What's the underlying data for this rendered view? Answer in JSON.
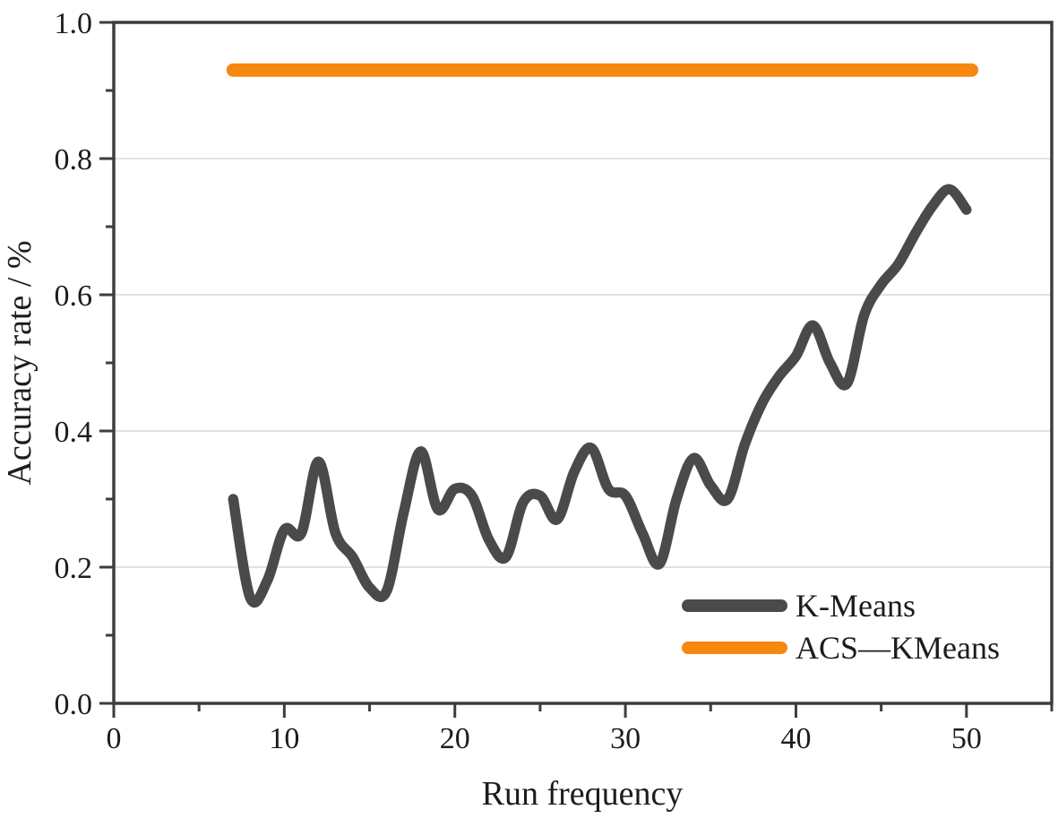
{
  "figure": {
    "background_color": "#ffffff",
    "title": ""
  },
  "chart_data": {
    "type": "line",
    "title": "",
    "xlabel": "Run frequency",
    "ylabel": "Accuracy rate / %",
    "xlim": [
      0,
      55
    ],
    "ylim": [
      0.0,
      1.0
    ],
    "grid": "horizontal-only",
    "y_gridlines": [
      0.2,
      0.4,
      0.6,
      0.8
    ],
    "x_major_ticks": [
      0,
      10,
      20,
      30,
      40,
      50
    ],
    "x_major_tick_labels": [
      "0",
      "10",
      "20",
      "30",
      "40",
      "50"
    ],
    "x_minor_ticks": [
      5,
      15,
      25,
      35,
      45,
      55
    ],
    "y_major_ticks": [
      0.0,
      0.2,
      0.4,
      0.6,
      0.8,
      1.0
    ],
    "y_major_tick_labels": [
      "0.0",
      "0.2",
      "0.4",
      "0.6",
      "0.8",
      "1.0"
    ],
    "y_minor_ticks": [
      0.1,
      0.3,
      0.5,
      0.7,
      0.9
    ],
    "axis_color": "#3d3d3d",
    "grid_color": "#d9d9d9",
    "text_color": "#1c1c1c",
    "legend_position": "lower-right-inside",
    "series": [
      {
        "name": "K-Means",
        "color": "#4a4a4a",
        "line_width": 11.5,
        "smooth": true,
        "x": [
          7,
          8,
          9,
          10,
          11,
          12,
          13,
          14,
          15,
          16,
          17,
          18,
          19,
          20,
          21,
          22,
          23,
          24,
          25,
          26,
          27,
          28,
          29,
          30,
          31,
          32,
          33,
          34,
          35,
          36,
          37,
          38,
          39,
          40,
          41,
          42,
          43,
          44,
          45,
          46,
          47,
          48,
          49,
          50
        ],
        "y": [
          0.3,
          0.155,
          0.18,
          0.255,
          0.25,
          0.355,
          0.25,
          0.215,
          0.17,
          0.165,
          0.28,
          0.37,
          0.285,
          0.315,
          0.305,
          0.24,
          0.215,
          0.295,
          0.305,
          0.27,
          0.34,
          0.375,
          0.315,
          0.305,
          0.25,
          0.205,
          0.3,
          0.36,
          0.32,
          0.3,
          0.38,
          0.44,
          0.48,
          0.51,
          0.555,
          0.5,
          0.47,
          0.57,
          0.615,
          0.645,
          0.69,
          0.73,
          0.755,
          0.725
        ]
      },
      {
        "name": "ACS—KMeans",
        "color": "#f6870f",
        "line_width": 15,
        "smooth": false,
        "x": [
          7,
          50.3
        ],
        "y": [
          0.93,
          0.93
        ]
      }
    ]
  }
}
